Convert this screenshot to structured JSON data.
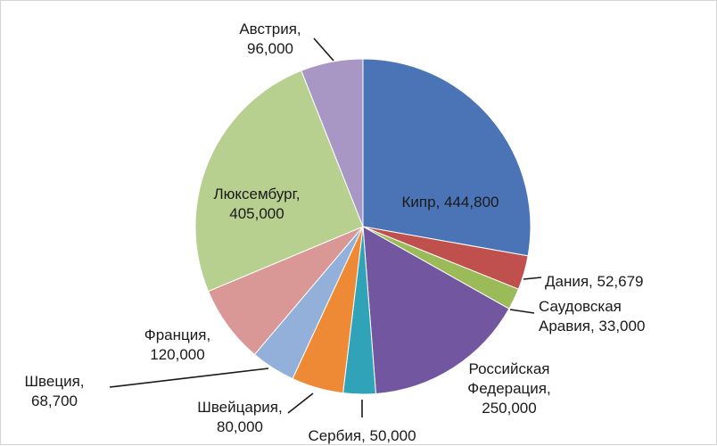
{
  "chart_data": {
    "type": "pie",
    "slices": [
      {
        "label": "Кипр",
        "value": 444800,
        "display": "444,800",
        "color": "#4a74b5"
      },
      {
        "label": "Дания",
        "value": 52679,
        "display": "52,679",
        "color": "#c0504d"
      },
      {
        "label": "Саудовская Аравия",
        "value": 33000,
        "display": "33,000",
        "color": "#9bbb59"
      },
      {
        "label": "Российская Федерация",
        "value": 250000,
        "display": "250,000",
        "color": "#7356a0"
      },
      {
        "label": "Сербия",
        "value": 50000,
        "display": "50,000",
        "color": "#31a3b9"
      },
      {
        "label": "Швейцария",
        "value": 80000,
        "display": "80,000",
        "color": "#ee8a35"
      },
      {
        "label": "Швеция",
        "value": 68700,
        "display": "68,700",
        "color": "#92b0da"
      },
      {
        "label": "Франция",
        "value": 120000,
        "display": "120,000",
        "color": "#d99795"
      },
      {
        "label": "Люксембург",
        "value": 405000,
        "display": "405,000",
        "color": "#b7cf8f"
      },
      {
        "label": "Австрия",
        "value": 96000,
        "display": "96,000",
        "color": "#a897c4"
      }
    ],
    "labels": [
      {
        "lines": [
          "Кипр,  444,800"
        ]
      },
      {
        "lines": [
          "Дания,  52,679"
        ]
      },
      {
        "lines": [
          "Саудовская",
          "Аравия,  33,000"
        ]
      },
      {
        "lines": [
          "Российская",
          "Федерация,",
          "250,000"
        ]
      },
      {
        "lines": [
          "Сербия,  50,000"
        ]
      },
      {
        "lines": [
          "Швейцария,",
          "80,000"
        ]
      },
      {
        "lines": [
          "Швеция,",
          "68,700"
        ]
      },
      {
        "lines": [
          "Франция,",
          "120,000"
        ]
      },
      {
        "lines": [
          "Люксембург,",
          "405,000"
        ]
      },
      {
        "lines": [
          "Австрия,",
          "96,000"
        ]
      }
    ]
  }
}
